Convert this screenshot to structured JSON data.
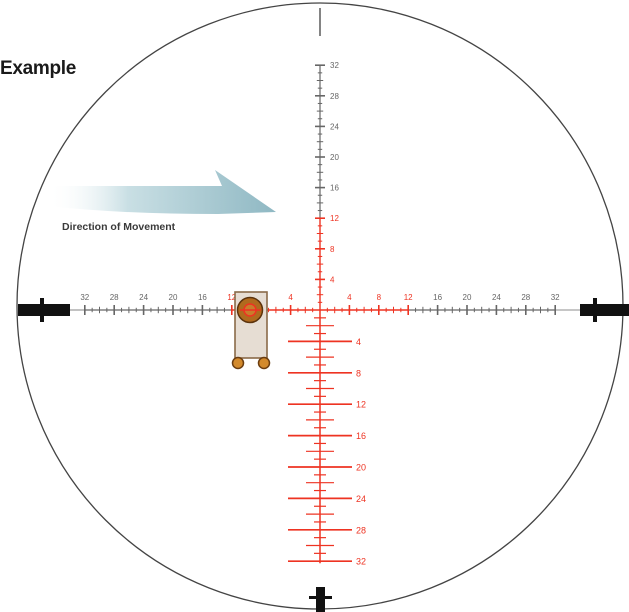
{
  "title": "Example",
  "direction_label": "Direction of Movement",
  "colors": {
    "red": "#ee3322",
    "gray": "#666666",
    "black": "#111111",
    "arrow": "#9fc3cc",
    "target_fill": "#e6ddd3",
    "target_stroke": "#8a6a48",
    "bullet": "#b06a1e"
  },
  "reticle": {
    "upper_labels": [
      "4",
      "8",
      "12",
      "16",
      "20",
      "24",
      "28",
      "32"
    ],
    "horizontal_labels": [
      "4",
      "8",
      "12",
      "16",
      "20",
      "24",
      "28",
      "32"
    ],
    "lower_labels": [
      "4",
      "8",
      "12",
      "16",
      "20",
      "24",
      "28",
      "32"
    ],
    "red_upper_limit": 12,
    "red_horizontal_limit": 12
  }
}
